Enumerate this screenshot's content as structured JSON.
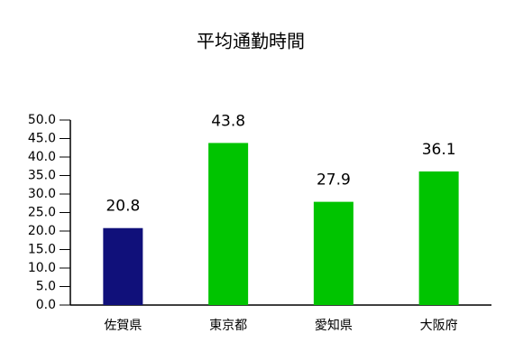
{
  "chart_data": {
    "type": "bar",
    "title": "平均通勤時間",
    "categories": [
      "佐賀県",
      "東京都",
      "愛知県",
      "大阪府"
    ],
    "values": [
      20.8,
      43.8,
      27.9,
      36.1
    ],
    "colors": [
      "#10107a",
      "#00c400",
      "#00c400",
      "#00c400"
    ],
    "ylim": [
      0,
      50
    ],
    "yticks": [
      {
        "value": 0,
        "label": "0.0"
      },
      {
        "value": 5,
        "label": "5.0"
      },
      {
        "value": 10,
        "label": "10.0"
      },
      {
        "value": 15,
        "label": "15.0"
      },
      {
        "value": 20,
        "label": "20.0"
      },
      {
        "value": 25,
        "label": "25.0"
      },
      {
        "value": 30,
        "label": "30.0"
      },
      {
        "value": 35,
        "label": "35.0"
      },
      {
        "value": 40,
        "label": "40.0"
      },
      {
        "value": 45,
        "label": "45.0"
      },
      {
        "value": 50,
        "label": "50.0"
      }
    ],
    "grid": false
  }
}
